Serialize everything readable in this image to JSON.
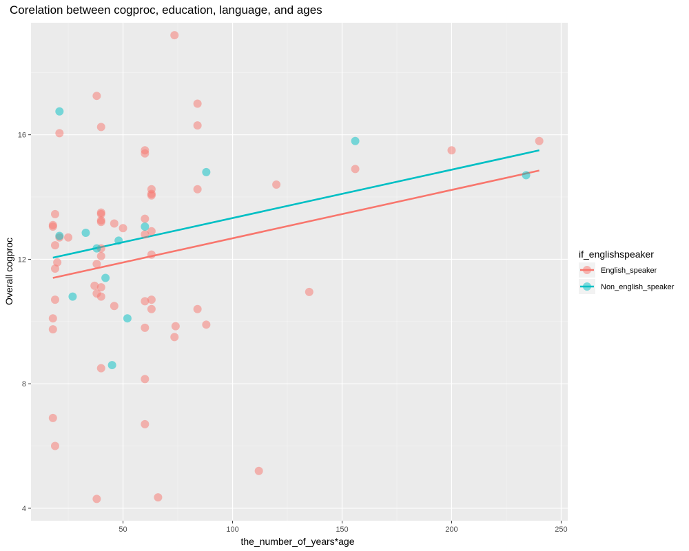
{
  "chart_data": {
    "type": "scatter",
    "title": "Corelation between cogproc, education, language, and ages",
    "xlabel": "the_number_of_years*age",
    "ylabel": "Overall cogproc",
    "xlim": [
      8,
      253
    ],
    "ylim": [
      3.6,
      19.6
    ],
    "xticks": [
      50,
      100,
      150,
      200,
      250
    ],
    "yticks": [
      4,
      8,
      12,
      16
    ],
    "xtick_labels": [
      "50",
      "100",
      "150",
      "200",
      "250"
    ],
    "ytick_labels": [
      "4",
      "8",
      "12",
      "16"
    ],
    "grid": true,
    "legend": {
      "title": "if_englishspeaker",
      "position": "right"
    },
    "series": [
      {
        "name": "English_speaker",
        "color": "#F8766D",
        "line": {
          "x": [
            18,
            240
          ],
          "y": [
            11.4,
            14.85
          ]
        },
        "points": [
          [
            73.5,
            19.2
          ],
          [
            38,
            17.25
          ],
          [
            84,
            17.0
          ],
          [
            40,
            16.25
          ],
          [
            84,
            16.3
          ],
          [
            21,
            16.05
          ],
          [
            60,
            15.5
          ],
          [
            60,
            15.4
          ],
          [
            200,
            15.5
          ],
          [
            240,
            15.8
          ],
          [
            156,
            14.9
          ],
          [
            120,
            14.4
          ],
          [
            63,
            14.25
          ],
          [
            84,
            14.25
          ],
          [
            63,
            14.1
          ],
          [
            63,
            14.05
          ],
          [
            19,
            13.45
          ],
          [
            40,
            13.5
          ],
          [
            40,
            13.45
          ],
          [
            40,
            13.25
          ],
          [
            40,
            13.2
          ],
          [
            60,
            13.3
          ],
          [
            46,
            13.15
          ],
          [
            18,
            13.1
          ],
          [
            18,
            13.05
          ],
          [
            50,
            13.0
          ],
          [
            63,
            12.9
          ],
          [
            60,
            12.8
          ],
          [
            21,
            12.7
          ],
          [
            25,
            12.7
          ],
          [
            19,
            12.45
          ],
          [
            40,
            12.35
          ],
          [
            40,
            12.1
          ],
          [
            63,
            12.15
          ],
          [
            20,
            11.9
          ],
          [
            38,
            11.85
          ],
          [
            19,
            11.7
          ],
          [
            37,
            11.15
          ],
          [
            40,
            11.1
          ],
          [
            135,
            10.95
          ],
          [
            38,
            10.9
          ],
          [
            40,
            10.8
          ],
          [
            19,
            10.7
          ],
          [
            60,
            10.65
          ],
          [
            63,
            10.7
          ],
          [
            46,
            10.5
          ],
          [
            63,
            10.4
          ],
          [
            84,
            10.4
          ],
          [
            18,
            10.1
          ],
          [
            74,
            9.85
          ],
          [
            88,
            9.9
          ],
          [
            60,
            9.8
          ],
          [
            18,
            9.75
          ],
          [
            73.5,
            9.5
          ],
          [
            40,
            8.5
          ],
          [
            60,
            8.15
          ],
          [
            18,
            6.9
          ],
          [
            60,
            6.7
          ],
          [
            19,
            6.0
          ],
          [
            112,
            5.2
          ],
          [
            38,
            4.3
          ],
          [
            66,
            4.35
          ]
        ]
      },
      {
        "name": "Non_english_speaker",
        "color": "#00BFC4",
        "line": {
          "x": [
            18,
            240
          ],
          "y": [
            12.05,
            15.5
          ]
        },
        "points": [
          [
            21,
            16.75
          ],
          [
            156,
            15.8
          ],
          [
            88,
            14.8
          ],
          [
            234,
            14.7
          ],
          [
            60,
            13.05
          ],
          [
            33,
            12.85
          ],
          [
            21,
            12.75
          ],
          [
            48,
            12.6
          ],
          [
            38,
            12.35
          ],
          [
            42,
            11.4
          ],
          [
            27,
            10.8
          ],
          [
            52,
            10.1
          ],
          [
            45,
            8.6
          ]
        ]
      }
    ]
  }
}
